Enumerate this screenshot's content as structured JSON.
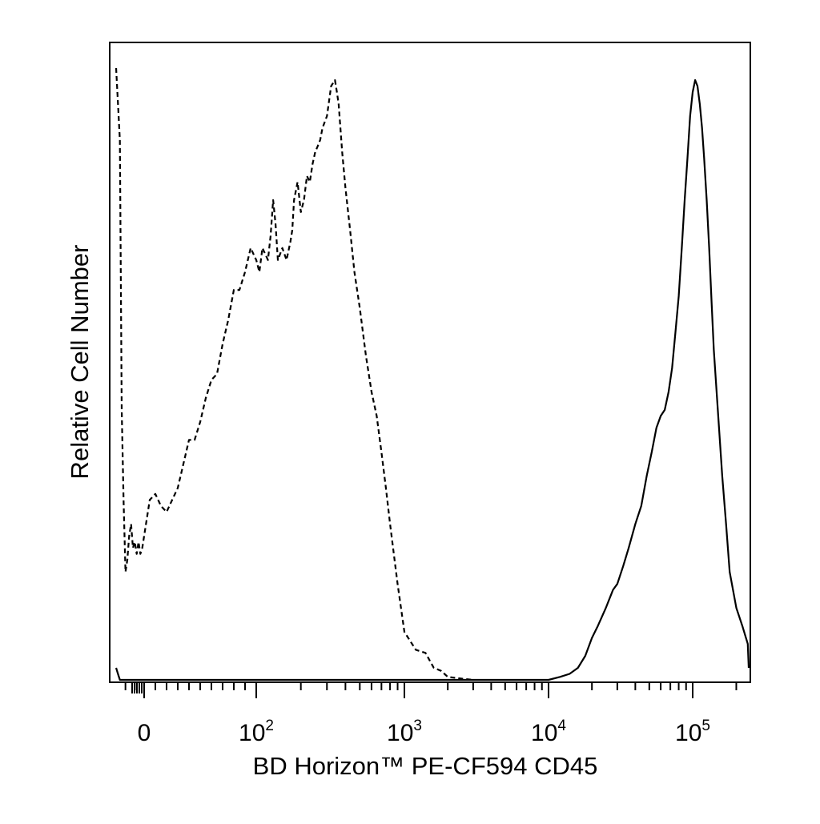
{
  "chart_data": {
    "type": "line",
    "title": "",
    "xlabel": "BD Horizon™ PE-CF594 CD45",
    "ylabel": "Relative Cell Number",
    "x_scale": "biexponential",
    "xlim": [
      -150,
      250000
    ],
    "ylim": [
      0,
      1
    ],
    "grid": false,
    "legend": "none",
    "x_ticks": [
      {
        "value": 0,
        "base": "0",
        "exp": ""
      },
      {
        "value": 100,
        "base": "10",
        "exp": "2"
      },
      {
        "value": 1000,
        "base": "10",
        "exp": "3"
      },
      {
        "value": 10000,
        "base": "10",
        "exp": "4"
      },
      {
        "value": 100000,
        "base": "10",
        "exp": "5"
      }
    ],
    "series": [
      {
        "line_style": "dashed",
        "color": "#000000",
        "x": [
          -150,
          -130,
          -120,
          -110,
          -100,
          -90,
          -80,
          -70,
          -60,
          -50,
          -40,
          -30,
          -20,
          -10,
          0,
          5,
          10,
          15,
          20,
          25,
          30,
          35,
          40,
          45,
          50,
          55,
          60,
          65,
          70,
          75,
          80,
          85,
          90,
          95,
          100,
          105,
          110,
          120,
          125,
          130,
          135,
          140,
          150,
          160,
          170,
          175,
          180,
          190,
          200,
          210,
          220,
          230,
          240,
          250,
          260,
          270,
          280,
          300,
          320,
          340,
          350,
          360,
          370,
          380,
          400,
          430,
          460,
          500,
          550,
          600,
          650,
          700,
          750,
          800,
          900,
          1000,
          1200,
          1400,
          1600,
          1800,
          2000,
          2500,
          3000
        ],
        "y": [
          1.02,
          0.9,
          0.45,
          0.3,
          0.18,
          0.2,
          0.24,
          0.26,
          0.22,
          0.23,
          0.21,
          0.23,
          0.21,
          0.22,
          0.24,
          0.3,
          0.31,
          0.29,
          0.28,
          0.3,
          0.32,
          0.36,
          0.4,
          0.4,
          0.43,
          0.47,
          0.5,
          0.51,
          0.56,
          0.6,
          0.65,
          0.65,
          0.68,
          0.72,
          0.7,
          0.68,
          0.72,
          0.7,
          0.74,
          0.8,
          0.76,
          0.7,
          0.72,
          0.7,
          0.73,
          0.75,
          0.8,
          0.83,
          0.78,
          0.8,
          0.84,
          0.83,
          0.86,
          0.88,
          0.89,
          0.9,
          0.92,
          0.94,
          0.99,
          1.0,
          0.98,
          0.96,
          0.92,
          0.88,
          0.82,
          0.75,
          0.68,
          0.62,
          0.54,
          0.48,
          0.44,
          0.38,
          0.32,
          0.26,
          0.16,
          0.08,
          0.05,
          0.045,
          0.02,
          0.015,
          0.005,
          0.002,
          0.0
        ]
      },
      {
        "line_style": "solid",
        "color": "#000000",
        "x": [
          -150,
          -140,
          -130,
          -120,
          10000,
          12000,
          14000,
          16000,
          18000,
          20000,
          22000,
          25000,
          28000,
          30000,
          33000,
          36000,
          40000,
          44000,
          48000,
          52000,
          56000,
          60000,
          64000,
          68000,
          72000,
          76000,
          80000,
          84000,
          88000,
          92000,
          96000,
          100000,
          104000,
          108000,
          112000,
          116000,
          120000,
          125000,
          130000,
          135000,
          140000,
          150000,
          160000,
          170000,
          180000,
          200000,
          220000,
          240000,
          250000
        ],
        "y": [
          0.02,
          0.01,
          0.0,
          0.0,
          0.0,
          0.005,
          0.01,
          0.02,
          0.04,
          0.07,
          0.09,
          0.12,
          0.15,
          0.16,
          0.19,
          0.22,
          0.26,
          0.29,
          0.34,
          0.38,
          0.42,
          0.44,
          0.45,
          0.48,
          0.52,
          0.58,
          0.64,
          0.72,
          0.8,
          0.87,
          0.94,
          0.98,
          1.0,
          0.99,
          0.96,
          0.92,
          0.87,
          0.8,
          0.72,
          0.63,
          0.55,
          0.44,
          0.34,
          0.26,
          0.18,
          0.12,
          0.09,
          0.06,
          0.02
        ]
      }
    ]
  }
}
